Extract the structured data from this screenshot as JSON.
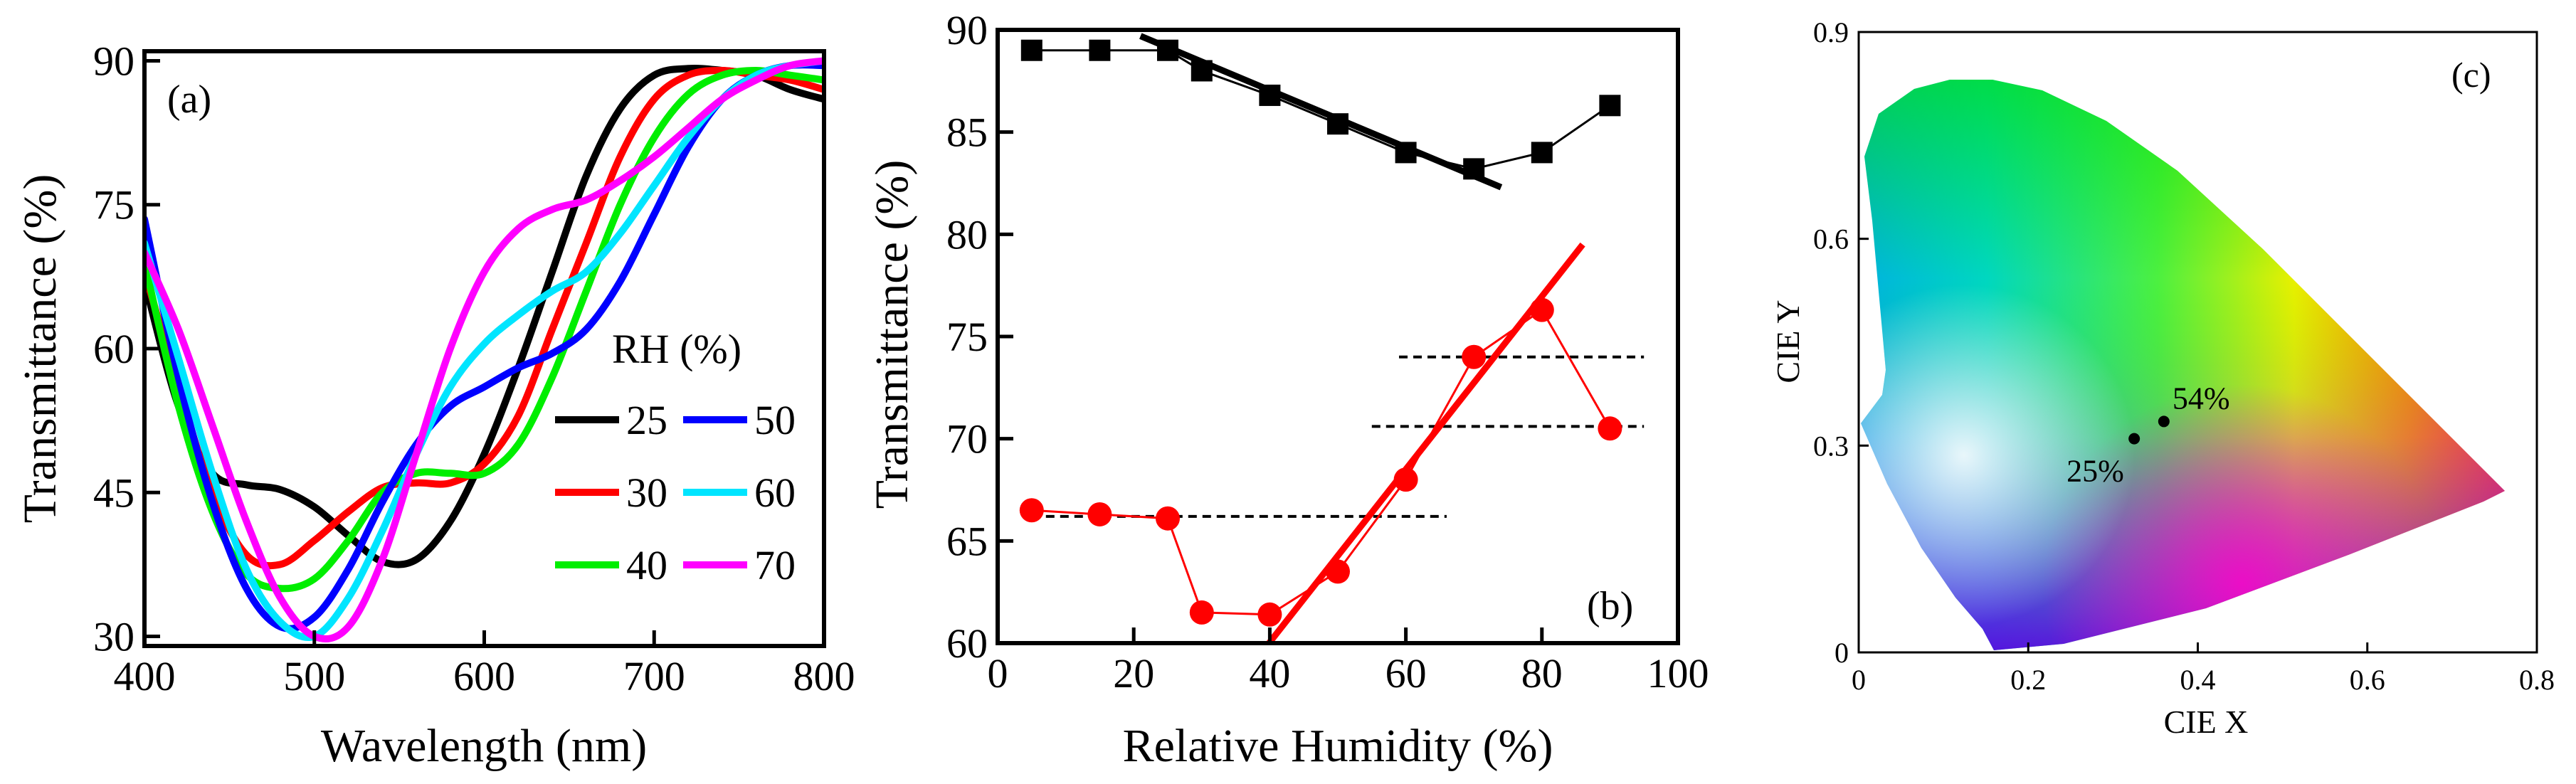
{
  "chart_data": [
    {
      "id": "a",
      "type": "line",
      "panel_label": "(a)",
      "xlabel": "Wavelength (nm)",
      "ylabel": "Transmittance (%)",
      "xlim": [
        400,
        800
      ],
      "ylim": [
        29,
        91
      ],
      "xticks": [
        400,
        500,
        600,
        700,
        800
      ],
      "yticks": [
        30,
        45,
        60,
        75,
        90
      ],
      "legend_title": "RH (%)",
      "series": [
        {
          "name": "25",
          "color": "#000000",
          "points": [
            [
              400,
              67
            ],
            [
              420,
              54
            ],
            [
              440,
              47
            ],
            [
              460,
              45.8
            ],
            [
              480,
              45.3
            ],
            [
              500,
              43.5
            ],
            [
              520,
              40.5
            ],
            [
              540,
              37.8
            ],
            [
              560,
              38
            ],
            [
              580,
              42
            ],
            [
              600,
              49
            ],
            [
              620,
              58
            ],
            [
              640,
              68
            ],
            [
              660,
              78
            ],
            [
              680,
              85
            ],
            [
              700,
              88.5
            ],
            [
              720,
              89.2
            ],
            [
              740,
              89
            ],
            [
              760,
              88.5
            ],
            [
              780,
              87
            ],
            [
              800,
              86
            ]
          ]
        },
        {
          "name": "30",
          "color": "#ff0000",
          "points": [
            [
              400,
              68
            ],
            [
              420,
              56
            ],
            [
              440,
              45
            ],
            [
              460,
              38.5
            ],
            [
              480,
              37.5
            ],
            [
              500,
              40
            ],
            [
              520,
              43
            ],
            [
              540,
              45.5
            ],
            [
              560,
              46
            ],
            [
              580,
              46
            ],
            [
              600,
              48
            ],
            [
              620,
              53
            ],
            [
              640,
              62
            ],
            [
              660,
              71
            ],
            [
              680,
              80
            ],
            [
              700,
              86
            ],
            [
              720,
              88.5
            ],
            [
              740,
              89
            ],
            [
              760,
              88.5
            ],
            [
              780,
              88
            ],
            [
              800,
              87
            ]
          ]
        },
        {
          "name": "40",
          "color": "#00ee00",
          "points": [
            [
              400,
              69
            ],
            [
              420,
              54
            ],
            [
              440,
              43
            ],
            [
              460,
              36.5
            ],
            [
              480,
              35
            ],
            [
              500,
              36
            ],
            [
              520,
              40
            ],
            [
              540,
              45
            ],
            [
              560,
              47
            ],
            [
              580,
              47
            ],
            [
              600,
              47
            ],
            [
              620,
              50
            ],
            [
              640,
              57
            ],
            [
              660,
              66
            ],
            [
              680,
              75
            ],
            [
              700,
              82
            ],
            [
              720,
              86.5
            ],
            [
              740,
              88.5
            ],
            [
              760,
              89
            ],
            [
              780,
              88.5
            ],
            [
              800,
              88
            ]
          ]
        },
        {
          "name": "50",
          "color": "#0000ff",
          "points": [
            [
              400,
              73.5
            ],
            [
              420,
              57
            ],
            [
              440,
              44
            ],
            [
              460,
              35
            ],
            [
              480,
              31
            ],
            [
              500,
              32
            ],
            [
              520,
              37
            ],
            [
              540,
              44
            ],
            [
              560,
              50
            ],
            [
              580,
              54
            ],
            [
              600,
              56
            ],
            [
              620,
              58
            ],
            [
              640,
              59.5
            ],
            [
              660,
              62
            ],
            [
              680,
              67
            ],
            [
              700,
              74
            ],
            [
              720,
              81
            ],
            [
              740,
              86
            ],
            [
              760,
              88.5
            ],
            [
              780,
              89.5
            ],
            [
              800,
              89.5
            ]
          ]
        },
        {
          "name": "60",
          "color": "#00e5ff",
          "points": [
            [
              400,
              71
            ],
            [
              420,
              59
            ],
            [
              440,
              47
            ],
            [
              460,
              37
            ],
            [
              480,
              31.5
            ],
            [
              500,
              30
            ],
            [
              520,
              34
            ],
            [
              540,
              41
            ],
            [
              560,
              49
            ],
            [
              580,
              56
            ],
            [
              600,
              60.5
            ],
            [
              620,
              63.5
            ],
            [
              640,
              66
            ],
            [
              660,
              68
            ],
            [
              680,
              72
            ],
            [
              700,
              77
            ],
            [
              720,
              82
            ],
            [
              740,
              86
            ],
            [
              760,
              88.5
            ],
            [
              780,
              89.5
            ],
            [
              800,
              90
            ]
          ]
        },
        {
          "name": "70",
          "color": "#ff00ff",
          "points": [
            [
              400,
              70
            ],
            [
              420,
              62
            ],
            [
              440,
              52
            ],
            [
              460,
              42
            ],
            [
              480,
              34
            ],
            [
              500,
              30
            ],
            [
              520,
              31
            ],
            [
              540,
              38
            ],
            [
              560,
              49
            ],
            [
              580,
              60
            ],
            [
              600,
              68
            ],
            [
              620,
              72.5
            ],
            [
              640,
              74.5
            ],
            [
              660,
              75.5
            ],
            [
              680,
              77.5
            ],
            [
              700,
              80
            ],
            [
              720,
              83
            ],
            [
              740,
              86
            ],
            [
              760,
              88
            ],
            [
              780,
              89.5
            ],
            [
              800,
              90
            ]
          ]
        }
      ]
    },
    {
      "id": "b",
      "type": "scatter",
      "panel_label": "(b)",
      "xlabel": "Relative Humidity (%)",
      "ylabel": "Transmittance (%)",
      "xlim": [
        0,
        100
      ],
      "ylim": [
        60,
        90
      ],
      "xticks": [
        0,
        20,
        40,
        60,
        80,
        100
      ],
      "yticks": [
        60,
        65,
        70,
        75,
        80,
        85,
        90
      ],
      "series": [
        {
          "name": "black squares",
          "marker": "square",
          "color": "#000000",
          "x": [
            5,
            15,
            25,
            30,
            40,
            50,
            60,
            70,
            80,
            90
          ],
          "y": [
            89,
            89,
            89,
            88,
            86.8,
            85.4,
            84,
            83.2,
            84,
            86.3
          ]
        },
        {
          "name": "red circles",
          "marker": "circle",
          "color": "#ff0000",
          "x": [
            5,
            15,
            25,
            30,
            40,
            50,
            60,
            70,
            80,
            90
          ],
          "y": [
            66.5,
            66.3,
            66.1,
            61.5,
            61.4,
            63.5,
            68,
            74,
            76.3,
            70.5
          ]
        }
      ],
      "fit_lines": [
        {
          "color": "#000000",
          "x": [
            21,
            74
          ],
          "y": [
            89.7,
            82.3
          ]
        },
        {
          "color": "#ff0000",
          "x": [
            38,
            86
          ],
          "y": [
            59.2,
            79.5
          ]
        }
      ],
      "reference_lines": [
        {
          "x": [
            5,
            66
          ],
          "y": [
            66.2,
            66.2
          ]
        },
        {
          "x": [
            55,
            95
          ],
          "y": [
            70.6,
            70.6
          ]
        },
        {
          "x": [
            59,
            95
          ],
          "y": [
            74,
            74
          ]
        }
      ]
    },
    {
      "id": "c",
      "type": "scatter",
      "panel_label": "(c)",
      "xlabel": "CIE X",
      "ylabel": "CIE Y",
      "xlim": [
        0,
        0.8
      ],
      "ylim": [
        0,
        0.9
      ],
      "xtick_labels": [
        "0",
        "0.2",
        "0.4",
        "0.6",
        "0.8"
      ],
      "ytick_labels": [
        "0",
        "0.3",
        "0.6",
        "0.9"
      ],
      "xticks": [
        0,
        0.2,
        0.4,
        0.6,
        0.8
      ],
      "yticks": [
        0,
        0.3,
        0.6,
        0.9
      ],
      "points": [
        {
          "label": "25%",
          "x": 0.325,
          "y": 0.31
        },
        {
          "label": "54%",
          "x": 0.36,
          "y": 0.335
        }
      ]
    }
  ]
}
